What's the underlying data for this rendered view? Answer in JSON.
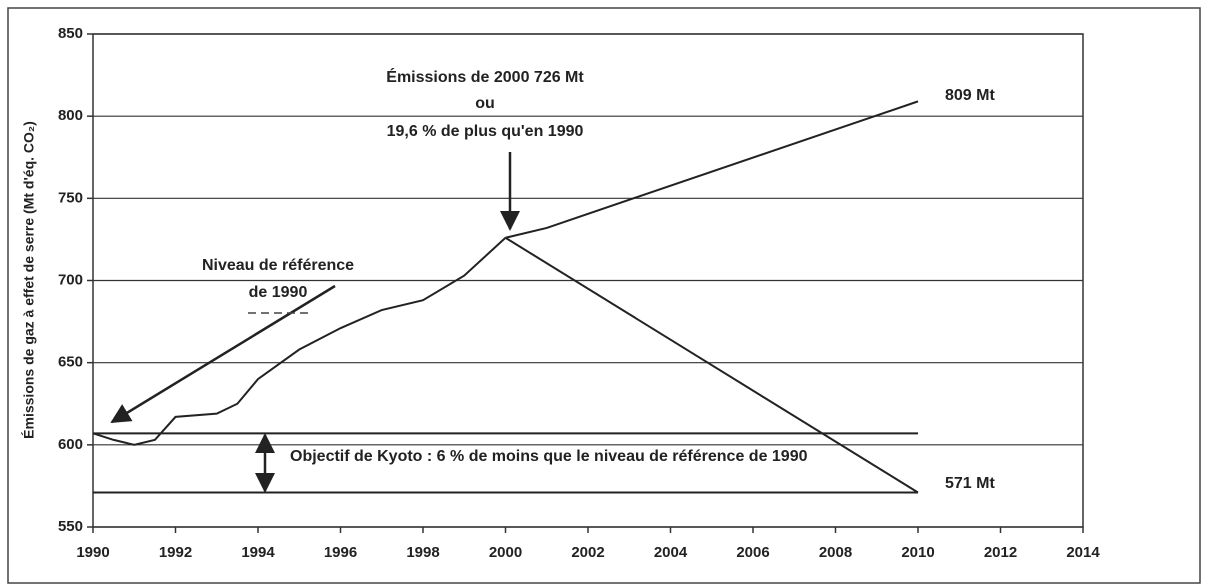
{
  "chart_data": {
    "type": "line",
    "ylabel": "Émissions de gaz à effet de serre (Mt d'éq. CO₂)",
    "series": [
      {
        "color": "#222222",
        "x": [
          1990,
          1990.5,
          1991,
          1991.5,
          1992,
          1993,
          1993.5,
          1994,
          1995,
          1996,
          1997,
          1998,
          1999,
          2000
        ],
        "values": [
          607,
          603,
          600,
          603,
          617,
          619,
          625,
          640,
          658,
          671,
          682,
          688,
          703,
          726
        ]
      },
      {
        "color": "#222222",
        "x": [
          2000,
          2001,
          2010
        ],
        "values": [
          726,
          732,
          809
        ]
      },
      {
        "color": "#222222",
        "x": [
          2000,
          2010
        ],
        "values": [
          726,
          571
        ]
      },
      {
        "color": "#222222",
        "x": [
          1990,
          2010
        ],
        "values": [
          607,
          607
        ]
      },
      {
        "color": "#222222",
        "x": [
          1990,
          2010
        ],
        "values": [
          571,
          571
        ]
      }
    ],
    "annotations": [
      "Émissions de 2000 726 Mt",
      "ou",
      "19,6 % de plus qu'en 1990",
      "809 Mt",
      "Niveau de référence",
      "de 1990",
      "Objectif de Kyoto : 6 % de moins que le niveau de référence de 1990",
      "571  Mt"
    ],
    "xlim": [
      1990,
      2014
    ],
    "xticks": [
      1990,
      1992,
      1994,
      1996,
      1998,
      2000,
      2002,
      2004,
      2006,
      2008,
      2010,
      2012,
      2014
    ],
    "ylim": [
      550,
      850
    ],
    "yticks": [
      550,
      600,
      650,
      700,
      750,
      800,
      850
    ],
    "grid": true
  }
}
